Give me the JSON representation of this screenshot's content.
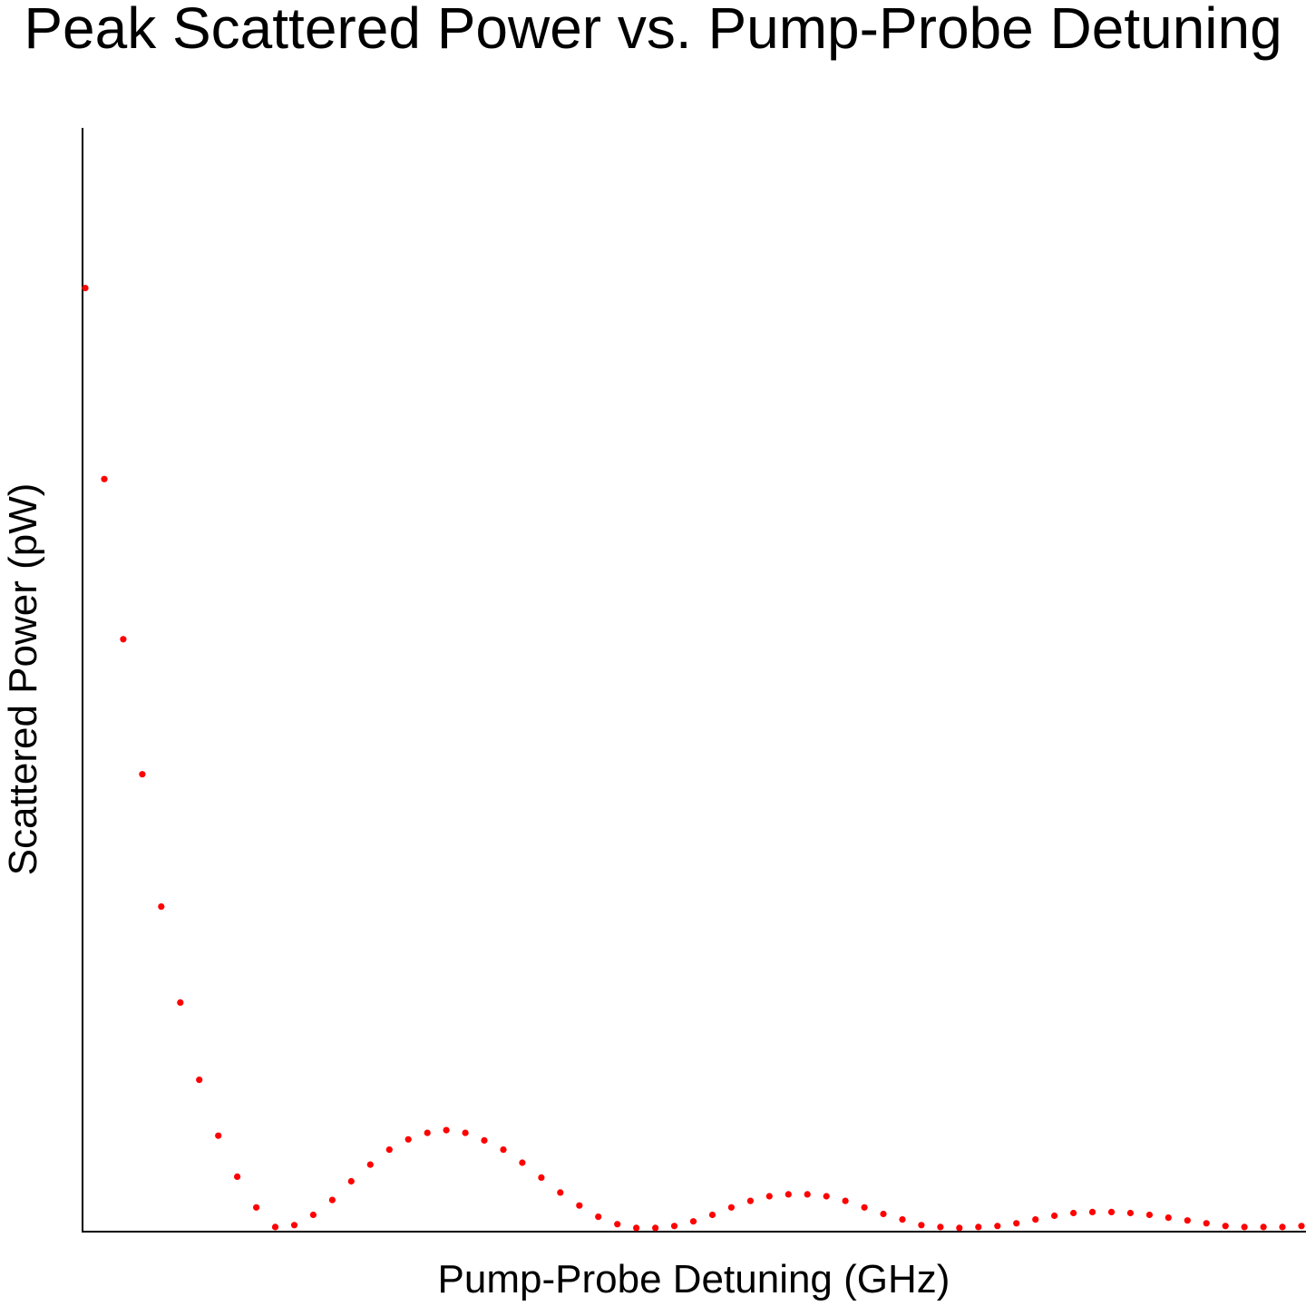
{
  "chart_data": {
    "type": "scatter",
    "title": "Peak Scattered Power vs. Pump-Probe Detuning",
    "xlabel": "Pump-Probe Detuning (GHz)",
    "ylabel": "Scattered Power (pW)",
    "grid": false,
    "legend": "none",
    "marker_color": "#ff0000",
    "series": [
      {
        "values": [
          [
            0,
            1013
          ],
          [
            1,
            808
          ],
          [
            2,
            636
          ],
          [
            3,
            491
          ],
          [
            4,
            349
          ],
          [
            5,
            246
          ],
          [
            6,
            163
          ],
          [
            7,
            103
          ],
          [
            8,
            59
          ],
          [
            9,
            26
          ],
          [
            10,
            5
          ],
          [
            11,
            7
          ],
          [
            12,
            18
          ],
          [
            13,
            34
          ],
          [
            14,
            54
          ],
          [
            15,
            72
          ],
          [
            16,
            88
          ],
          [
            17,
            99
          ],
          [
            18,
            106
          ],
          [
            19,
            109
          ],
          [
            20,
            106
          ],
          [
            21,
            98
          ],
          [
            22,
            88
          ],
          [
            23,
            74
          ],
          [
            24,
            58
          ],
          [
            25,
            42
          ],
          [
            26,
            28
          ],
          [
            27,
            16
          ],
          [
            28,
            8
          ],
          [
            29,
            4
          ],
          [
            30,
            4
          ],
          [
            31,
            6
          ],
          [
            32,
            11
          ],
          [
            33,
            18
          ],
          [
            34,
            26
          ],
          [
            35,
            33
          ],
          [
            36,
            38
          ],
          [
            37,
            40
          ],
          [
            38,
            40
          ],
          [
            39,
            38
          ],
          [
            40,
            33
          ],
          [
            41,
            26
          ],
          [
            42,
            19
          ],
          [
            43,
            13
          ],
          [
            44,
            7
          ],
          [
            45,
            5
          ],
          [
            46,
            4
          ],
          [
            47,
            5
          ],
          [
            48,
            6
          ],
          [
            49,
            9
          ],
          [
            50,
            13
          ],
          [
            51,
            17
          ],
          [
            52,
            20
          ],
          [
            53,
            21
          ],
          [
            54,
            21
          ],
          [
            55,
            20
          ],
          [
            56,
            18
          ],
          [
            57,
            15
          ],
          [
            58,
            12
          ],
          [
            59,
            9
          ],
          [
            60,
            6
          ],
          [
            61,
            5
          ],
          [
            62,
            5
          ],
          [
            63,
            5
          ],
          [
            64,
            6
          ]
        ]
      }
    ],
    "xlim": [
      0,
      64
    ],
    "ylim": [
      0,
      1185
    ]
  }
}
